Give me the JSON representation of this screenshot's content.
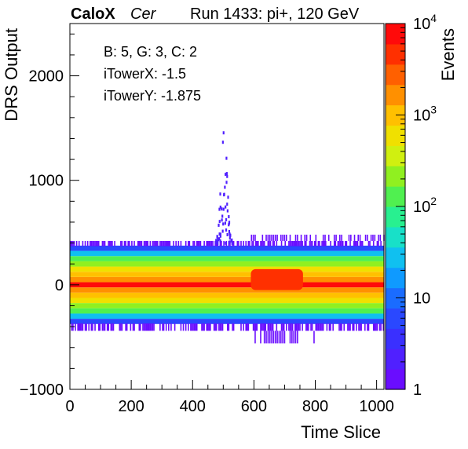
{
  "header": {
    "experiment": "CaloX",
    "channel": "Cer",
    "run_info": "Run 1433: pi+, 120 GeV"
  },
  "info_box": {
    "line1": "B: 5, G: 3, C: 2",
    "line2": "iTowerX: -1.5",
    "line3": "iTowerY: -1.875"
  },
  "chart_data": {
    "type": "heatmap",
    "title": "",
    "xlabel": "Time Slice",
    "ylabel": "DRS Output",
    "zlabel": "Events",
    "xlim": [
      0,
      1024
    ],
    "ylim": [
      -1000,
      2500
    ],
    "zlim": [
      1,
      10000
    ],
    "zscale": "log",
    "x_ticks": [
      "0",
      "200",
      "400",
      "600",
      "800",
      "1000"
    ],
    "y_ticks": [
      "−1000",
      "0",
      "1000",
      "2000"
    ],
    "z_ticks": [
      {
        "value": 1,
        "label": "1"
      },
      {
        "value": 10,
        "label": "10"
      },
      {
        "value": 100,
        "label": "10",
        "exp": "2"
      },
      {
        "value": 1000,
        "label": "10",
        "exp": "3"
      },
      {
        "value": 10000,
        "label": "10",
        "exp": "4"
      }
    ],
    "palette": [
      "#6a0dff",
      "#5020ff",
      "#3a30ff",
      "#2a48ff",
      "#1a6cff",
      "#0f9aff",
      "#10c0f0",
      "#18e0c8",
      "#28f090",
      "#50f050",
      "#90f020",
      "#d0f010",
      "#f0e000",
      "#ffc000",
      "#ff9000",
      "#ff6000",
      "#ff3000",
      "#ff0a0a"
    ],
    "pedestal_bands": [
      {
        "y_range": [
          -25,
          25
        ],
        "events": 10000
      },
      {
        "y_range": [
          25,
          75
        ],
        "events": 2000
      },
      {
        "y_range": [
          -75,
          -25
        ],
        "events": 2000
      },
      {
        "y_range": [
          75,
          125
        ],
        "events": 1000
      },
      {
        "y_range": [
          -125,
          -75
        ],
        "events": 1000
      },
      {
        "y_range": [
          125,
          175
        ],
        "events": 500
      },
      {
        "y_range": [
          -175,
          -125
        ],
        "events": 500
      },
      {
        "y_range": [
          175,
          225
        ],
        "events": 200
      },
      {
        "y_range": [
          -225,
          -175
        ],
        "events": 200
      },
      {
        "y_range": [
          225,
          275
        ],
        "events": 100
      },
      {
        "y_range": [
          -275,
          -225
        ],
        "events": 100
      },
      {
        "y_range": [
          275,
          325
        ],
        "events": 30
      },
      {
        "y_range": [
          -325,
          -275
        ],
        "events": 30
      },
      {
        "y_range": [
          325,
          375
        ],
        "events": 5
      },
      {
        "y_range": [
          -375,
          -325
        ],
        "events": 5
      }
    ],
    "signal_region": {
      "x_range": [
        590,
        760
      ],
      "y_range": [
        -50,
        150
      ],
      "events": 5000
    },
    "peak": {
      "x_center": 500,
      "y_max": 1520,
      "events": 2
    }
  }
}
